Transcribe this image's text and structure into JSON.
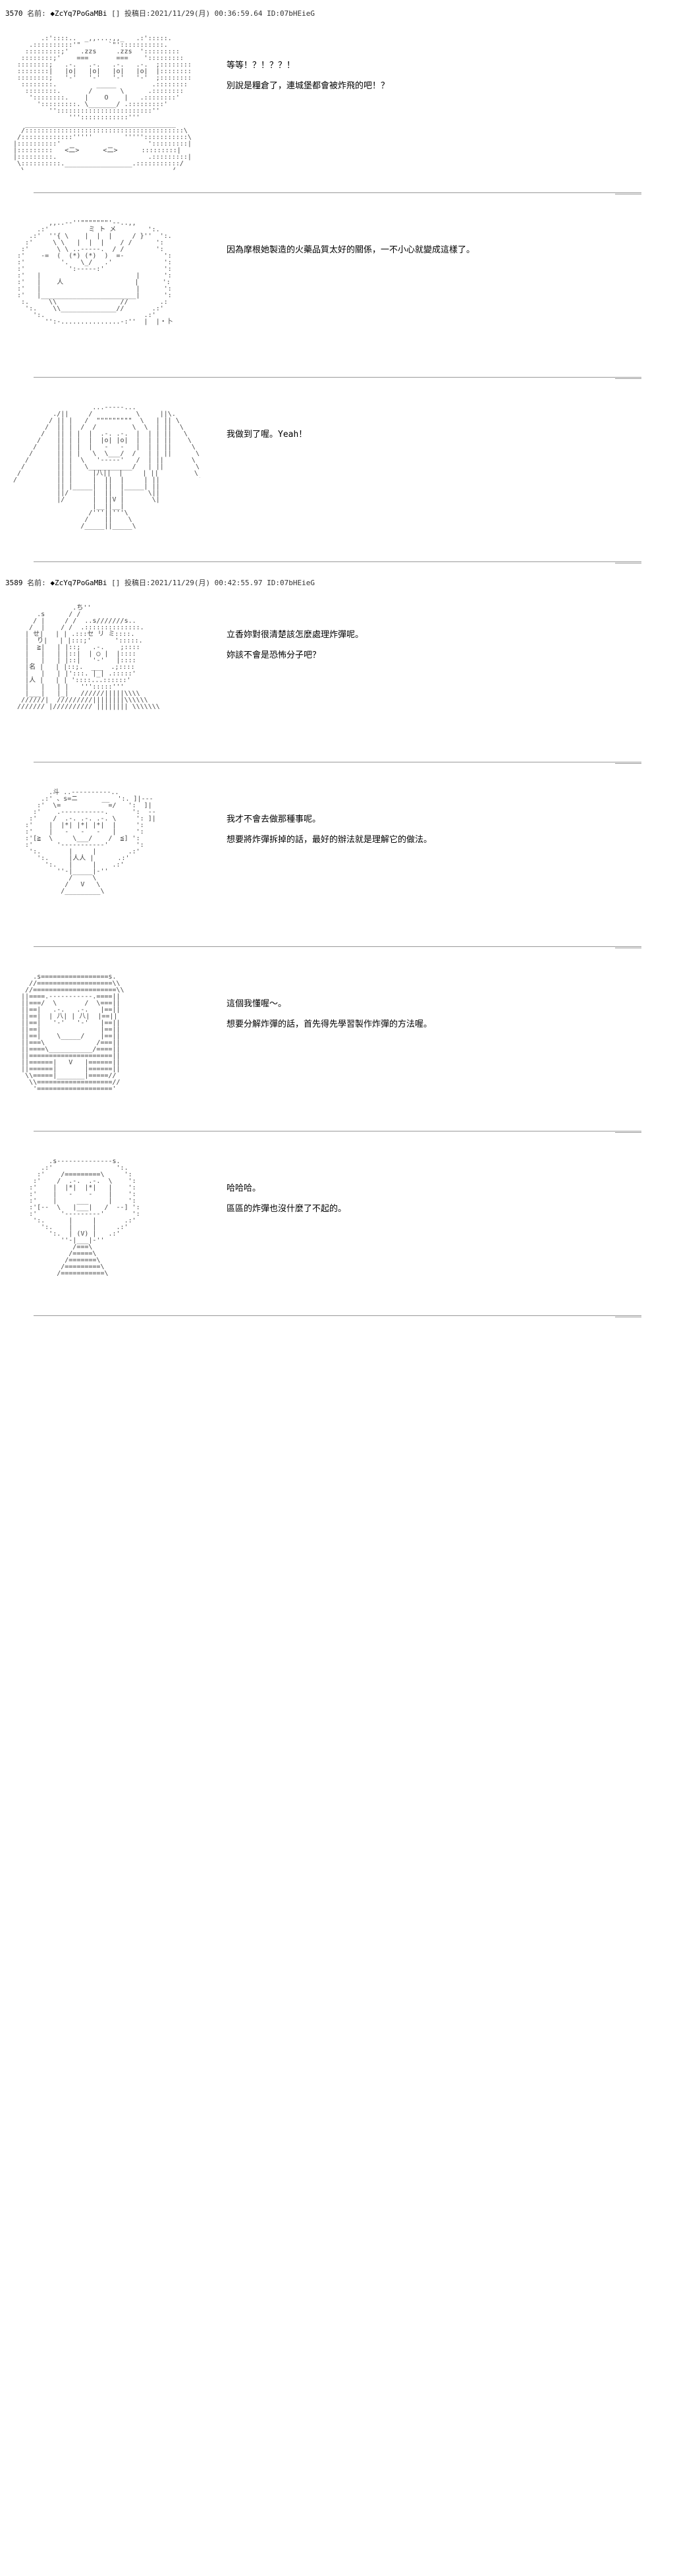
{
  "posts": [
    {
      "num": "3570",
      "name_prefix": "名前:",
      "name": "◆ZcYq7PoGaMBi",
      "date_prefix": "投稿日:",
      "date": "2021/11/29(月) 00:36:59.64",
      "id_prefix": "ID:",
      "id": "07bHEieG",
      "panels": [
        {
          "art_hint": "surprised-face",
          "lines": [
            "等等！？！？？！",
            "別說是糧倉了，連城堡都會被炸飛的吧！？"
          ]
        },
        {
          "art_hint": "girl-smiling",
          "lines": [
            "因為摩根她製造的火藥品質太好的關係，一不小心就變成這樣了。"
          ]
        },
        {
          "art_hint": "girl-with-staff",
          "lines": [
            "我做到了喔。Yeah！"
          ]
        }
      ]
    },
    {
      "num": "3589",
      "name_prefix": "名前:",
      "name": "◆ZcYq7PoGaMBi",
      "date_prefix": "投稿日:",
      "date": "2021/11/29(月) 00:42:55.97",
      "id_prefix": "ID:",
      "id": "07bHEieG",
      "panels": [
        {
          "art_hint": "two-characters",
          "lines": [
            "立香妳對很清楚該怎麼處理炸彈呢。",
            "妳該不會是恐怖分子吧？"
          ]
        },
        {
          "art_hint": "girl-explaining",
          "lines": [
            "我才不會去做那種事呢。",
            "想要將炸彈拆掉的話，最好的辦法就是理解它的做法。"
          ]
        },
        {
          "art_hint": "girl-understanding",
          "lines": [
            "這個我懂喔～。",
            "想要分解炸彈的話，首先得先學習製作炸彈的方法喔。"
          ]
        },
        {
          "art_hint": "girl-casual",
          "lines": [
            "哈哈哈。",
            "區區的炸彈也沒什麼了不起的。"
          ]
        }
      ]
    }
  ],
  "aa_samples": {
    "surprised-face": "       .:'::::..  _,,....,,_   .:':::::.\n    .::::::::::'\"       `\"':::::::::::.\n   :::::::::;'   .zzs     .zzs  ':::::::::\n  ::::::::;'    ===       ===    ':::::::::\n ::::::::;   .-.   .-.   .-.   .-.  ;::::::::\n ::::::::|   |o|   |o|   |o|   |o|  |::::::::\n ::::::::;   '-'   '-'   '-'   '-'  ;::::::::\n  ::::::::.          _____         .::::::::\n   ::::::::.       /       \\      .::::::::\n    '::::::::.    |    O    |   .::::::::' \n      ':::::::::. \\_______/ .:::::::::'\n         ''::::::::::::::::::::::::''\n              '''::::::::::::'''\n   ______________________________________\n  /::::::::::::::::::::::::::::::::::::::::\\\n /:::::::::::::'''''        ''''':::::::::::\\\n|::::::::::'                      ':::::::::|\n|:::::::::   <二>      <二>      :::::::::|\n|:::::::::.                       .:::::::::|\n \\::::::::::._________________.:::::::::::/\n  \\_____________________________________/",
    "girl-smiling": "         ,,..-‐''\"\"\"\"\"\"\"'‐-..,,\n      .:'          ミ ト メ        ':.\n    .:'  ''{ \\    |  |  |     / }''  ':.\n   :'     \\ \\   |  |  |    / /      ':\n  :'       \\ \\ ..-----.  / /        ':\n :'    -=  (  (*) (*)  )  =-          ':\n :'         '.   \\_/   .'             ':\n :'           ':-----:'               ':\n :'   |                        |      ':\n :'   |    人                  |      ':\n :'   |                        |      ':\n :'   |________________________|      ':\n  :.     \\\\                //        .:\n   ':.    \\\\______________//       .:'\n     ':.                         .:'\n        '':-...............-:''  |  |・卜",
    "girl-with-staff": "                    ...-----...\n          ./||     /           \\     ||\\.\n         / || |   /  \"\"\"\"\"\"\"\"\"  \\   | || \\\n        /  || |  /  /         \\  \\  | ||  \\\n       /   || | |  |  .-. .-.  |  | | ||   \\\n      /    || | |  |  |o| |o|  |  | | ||    \\\n     /     || | |  |   -   -   |  | | ||     \\\n    /      || | |   \\  \\___/  /   | | ||      \\\n   /       || |  \\   '-----'   /  | ||       \\\n  /        || |   \\___________/   | ||        \\\n /         || |     |八||  |     | ||         \\\n/          || |     |  ||  |     | ||          \\\n           || |_____|  ||  |_____| ||\n           ||/      |  ||  |      \\||\n           |/       |  ||V |       \\|\n                    |__||__|\n                   /'''||'''\\\n                  /    ||    \\\n                 /_____||_____\\",
    "two-characters": "               .ち''\n      .s      / /\n     / |     / /  ..s///////s..\n    /  |    / /  .::::::::::::::.\n   | せ|   | | .:::セ リ ミ::::.\n   |  り|   | |:::;'      ':::::. \n   |  ≧|   | |::;   .-.    ;::::\n   |   |   | |::|  | ◯ |  |::::\n   |   |   | |::|   '-'   |::::\n   |名 |   | |::;.  ___  .;::::\n   |   |   | |':::. |_| .:::::'\n   |人 |   | | '::::...::::::'\n   |   |   | |   ''':::::'''\n   |___|   |_|   //////|||||\\\\\\\\\n  //////|  /////////||||||||\\\\\\\\\\\\\n /////// |////////// |||||||| \\\\\\\\\\\\\\",
    "girl-explaining": "         .斗 ..----------..\n       .:' 、s=ニ      __  ':. ]|---\n      :'  \\=            =/   ':  ]|\n     :'    .-----------.      ':  --\n    :'    /  .-. .-. .-. \\     ': ]|\n   :'    |  |*| |*| |*|  |     ':\n   :'    |   -   -   -   |     ':\n   :'[≧  \\     \\___/    /  ≦] ':\n   :'      '-----------'       ':\n    ':.       |     |        .:'\n      ':.     |人人 |      .:'\n        ':.   |     |    .:'\n           ''-|_____|-''\n              /     \\\n             /   V   \\\n            /_________\\",
    "girl-understanding": "     .s=================s.\n    //===================\\\\\n   //=====================\\\\\n  ||====.-----------.====||\n  ||===/  \\       /  \\===||\n  ||==|   .-.   .-.   |==||\n  ||==|  | 八| | 八|  |==||\n  ||==|   '-'   '-'   |==||\n  ||==|               |==||\n  ||==|    \\_____/    |==||\n  ||===\\             /===||\n  ||====\\___________/====||\n  ||=====================||\n  ||======|   V   |======||\n  ||======|       |======||\n   \\\\=====|_______|=====// \n    \\\\===================//\n     '==================='",
    "girl-casual": "         .s--------------s.\n       .:'                ':.\n      :'    /=========\\     ':\n     :'    /  .-.  .-.  \\    ':\n    :'    |  |*|  |*|   |    ':\n    :'    |   -    -    |    ':\n    :'    |     ___     |    ':\n    :'[--  \\   |___|   /  --] ':\n    :'      '---------'       ':\n     ':.      |     |       .:'\n       ':.    |     |     .:'\n         ':.  | (V) |   .:'\n            ''-|___|-''\n               /===\\\n              /=====\\\n             /=======\\\n            /=========\\\n           /===========\\"
  },
  "colors": {
    "background": "#ffffff",
    "text": "#000000",
    "header_text": "#333333",
    "art_text": "#444444",
    "divider": "#999999"
  }
}
